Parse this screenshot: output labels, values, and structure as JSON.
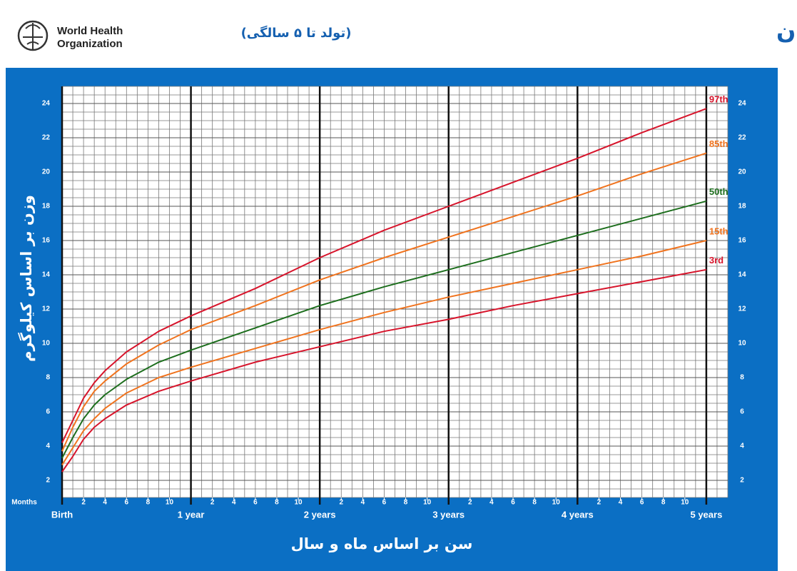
{
  "logo": {
    "lines": [
      "World Health",
      "Organization"
    ]
  },
  "chart_data": {
    "type": "line",
    "title": "وزن بر اساس سن پسران",
    "subtitle": "(تولد تا ۵ سالگی)",
    "y_label": "وزن بر اساس کیلوگرم",
    "x_label": "سن بر اساس ماه و سال",
    "x_unit_label": "Months",
    "x": [
      0,
      1,
      2,
      3,
      4,
      6,
      9,
      12,
      18,
      24,
      30,
      36,
      42,
      48,
      54,
      60
    ],
    "series": [
      {
        "name": "97th",
        "color": "#d7142b",
        "values": [
          4.2,
          5.5,
          6.8,
          7.7,
          8.4,
          9.5,
          10.7,
          11.6,
          13.2,
          15.0,
          16.6,
          18.0,
          19.4,
          20.8,
          22.3,
          23.7
        ]
      },
      {
        "name": "85th",
        "color": "#f0731e",
        "values": [
          3.7,
          5.1,
          6.3,
          7.2,
          7.8,
          8.8,
          9.9,
          10.8,
          12.2,
          13.7,
          15.0,
          16.2,
          17.4,
          18.6,
          19.9,
          21.1
        ]
      },
      {
        "name": "50th",
        "color": "#1d6e1d",
        "values": [
          3.3,
          4.5,
          5.6,
          6.4,
          7.0,
          7.9,
          8.9,
          9.6,
          10.9,
          12.2,
          13.3,
          14.3,
          15.3,
          16.3,
          17.3,
          18.3
        ]
      },
      {
        "name": "15th",
        "color": "#f0731e",
        "values": [
          2.9,
          3.9,
          4.9,
          5.6,
          6.2,
          7.1,
          8.0,
          8.6,
          9.7,
          10.8,
          11.8,
          12.7,
          13.5,
          14.3,
          15.1,
          16.0
        ]
      },
      {
        "name": "3rd",
        "color": "#d7142b",
        "values": [
          2.5,
          3.4,
          4.4,
          5.1,
          5.6,
          6.4,
          7.2,
          7.8,
          8.9,
          9.8,
          10.7,
          11.4,
          12.2,
          12.9,
          13.6,
          14.3
        ]
      }
    ],
    "xlim": [
      0,
      62
    ],
    "ylim": [
      1,
      25
    ],
    "yticks": [
      2,
      4,
      6,
      8,
      10,
      12,
      14,
      16,
      18,
      20,
      22,
      24
    ],
    "xticks": [
      {
        "value": 0,
        "label": "Birth"
      },
      2,
      4,
      6,
      8,
      10,
      {
        "value": 12,
        "label": "1 year"
      },
      {
        "value": 14,
        "label": "2"
      },
      {
        "value": 16,
        "label": "4"
      },
      {
        "value": 18,
        "label": "6"
      },
      {
        "value": 20,
        "label": "8"
      },
      {
        "value": 22,
        "label": "10"
      },
      {
        "value": 24,
        "label": "2 years"
      },
      {
        "value": 26,
        "label": "2"
      },
      {
        "value": 28,
        "label": "4"
      },
      {
        "value": 30,
        "label": "6"
      },
      {
        "value": 32,
        "label": "8"
      },
      {
        "value": 34,
        "label": "10"
      },
      {
        "value": 36,
        "label": "3 years"
      },
      {
        "value": 38,
        "label": "2"
      },
      {
        "value": 40,
        "label": "4"
      },
      {
        "value": 42,
        "label": "6"
      },
      {
        "value": 44,
        "label": "8"
      },
      {
        "value": 46,
        "label": "10"
      },
      {
        "value": 48,
        "label": "4 years"
      },
      {
        "value": 50,
        "label": "2"
      },
      {
        "value": 52,
        "label": "4"
      },
      {
        "value": 54,
        "label": "6"
      },
      {
        "value": 56,
        "label": "8"
      },
      {
        "value": 58,
        "label": "10"
      },
      {
        "value": 60,
        "label": "5 years"
      }
    ],
    "grid": true
  }
}
